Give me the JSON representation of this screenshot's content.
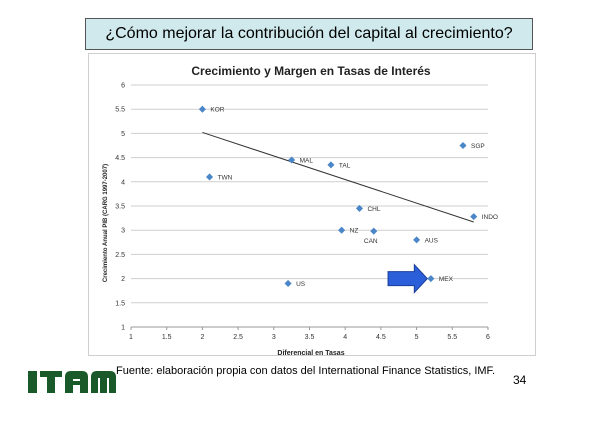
{
  "slide": {
    "title": "¿Cómo mejorar la contribución del capital al crecimiento?",
    "source": "Fuente: elaboración propia con datos del International Finance Statistics, IMF.",
    "page_number": "34",
    "logo_text": "ITAM"
  },
  "colors": {
    "title_bg": "#cfe9ec",
    "point": "#4a86c8",
    "arrow": "#2b5fd9",
    "trendline": "#333333",
    "logo": "#1a5a2a"
  },
  "chart_data": {
    "type": "scatter",
    "title": "Crecimiento y Margen en Tasas de Interés",
    "xlabel": "Diferencial en Tasas",
    "ylabel": "Crecimiento Anual PIB (CARG 1997-2007)",
    "xlim": [
      1,
      6
    ],
    "ylim": [
      1,
      6
    ],
    "xticks": [
      "1",
      "1.5",
      "2",
      "2.5",
      "3",
      "3.5",
      "4",
      "4.5",
      "5",
      "5.5",
      "6"
    ],
    "yticks": [
      "1",
      "1.5",
      "2",
      "2.5",
      "3",
      "3.5",
      "4",
      "4.5",
      "5",
      "5.5",
      "6"
    ],
    "xtick_values": [
      1,
      1.5,
      2,
      2.5,
      3,
      3.5,
      4,
      4.5,
      5,
      5.5,
      6
    ],
    "ytick_values": [
      1,
      1.5,
      2,
      2.5,
      3,
      3.5,
      4,
      4.5,
      5,
      5.5,
      6
    ],
    "grid": true,
    "points": [
      {
        "label": "KOR",
        "x": 2.0,
        "y": 5.5
      },
      {
        "label": "TWN",
        "x": 2.1,
        "y": 4.1
      },
      {
        "label": "US",
        "x": 3.2,
        "y": 1.9
      },
      {
        "label": "MAL",
        "x": 3.25,
        "y": 4.45
      },
      {
        "label": "CHL",
        "x": 4.2,
        "y": 3.45
      },
      {
        "label": "CAN",
        "x": 4.4,
        "y": 2.98
      },
      {
        "label": "TAL",
        "x": 3.8,
        "y": 4.35
      },
      {
        "label": "NZ",
        "x": 3.95,
        "y": 3.0
      },
      {
        "label": "AUS",
        "x": 5.0,
        "y": 2.8
      },
      {
        "label": "SGP",
        "x": 5.65,
        "y": 4.75
      },
      {
        "label": "INDO",
        "x": 5.8,
        "y": 3.28
      },
      {
        "label": "MEX",
        "x": 5.2,
        "y": 2.0
      }
    ],
    "trendline": {
      "x": [
        2.0,
        5.8
      ],
      "y": [
        5.02,
        3.17
      ]
    },
    "annotation_arrow": {
      "x_start": 4.6,
      "x_end": 5.15,
      "y": 2.0
    }
  }
}
